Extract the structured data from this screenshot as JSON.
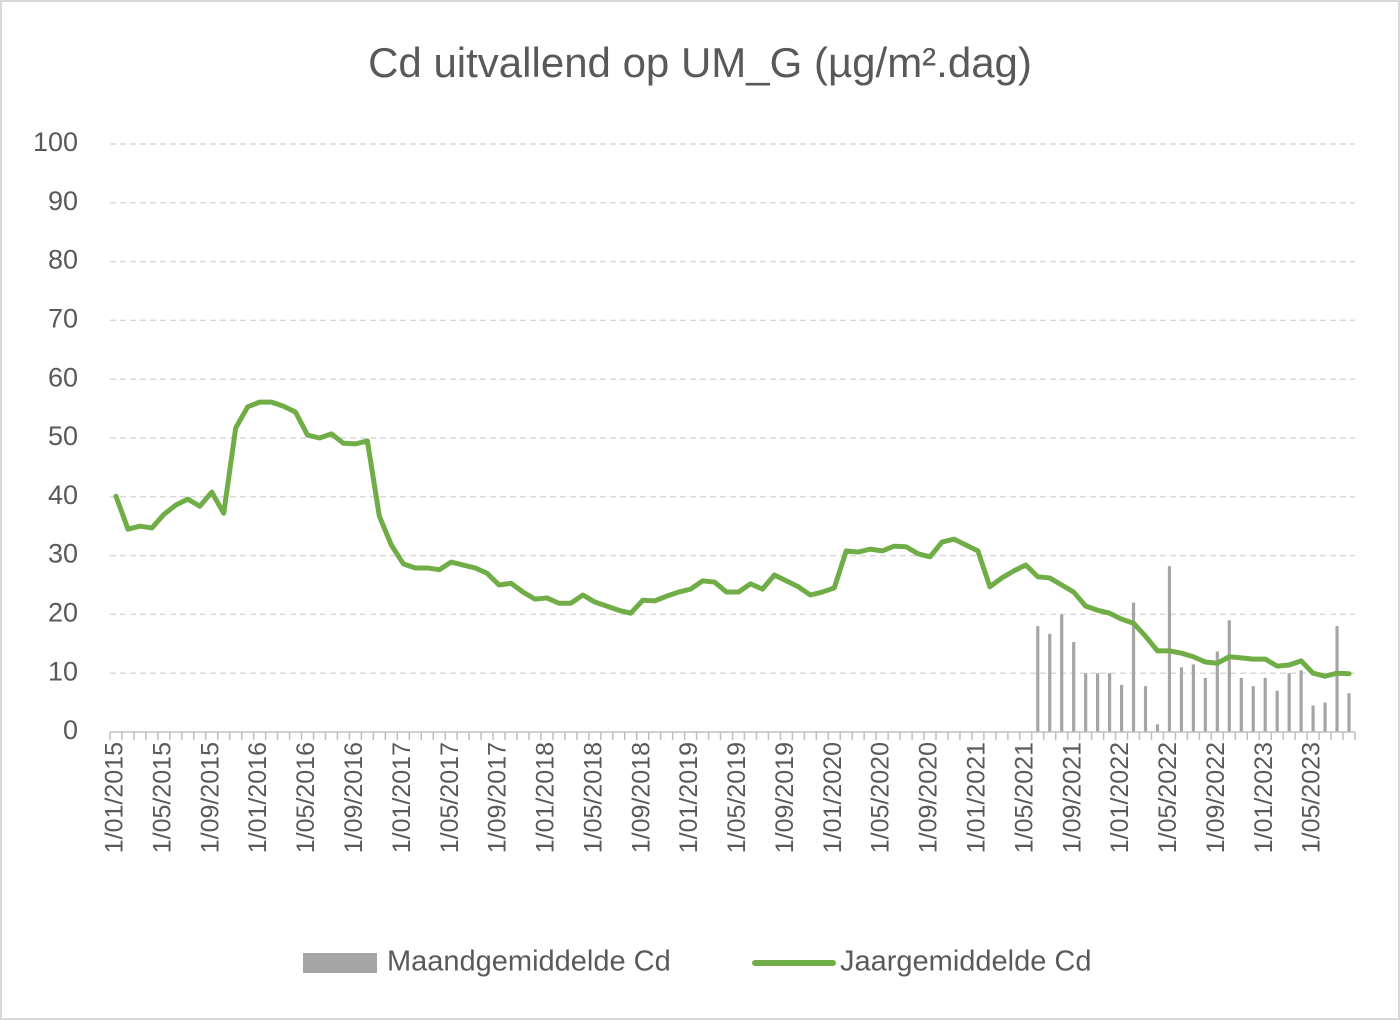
{
  "chart_data": {
    "type": "combo",
    "title": "Cd uitvallend op UM_G (µg/m².dag)",
    "categories": [
      "1/01/2015",
      null,
      null,
      null,
      "1/05/2015",
      null,
      null,
      null,
      "1/09/2015",
      null,
      null,
      null,
      "1/01/2016",
      null,
      null,
      null,
      "1/05/2016",
      null,
      null,
      null,
      "1/09/2016",
      null,
      null,
      null,
      "1/01/2017",
      null,
      null,
      null,
      "1/05/2017",
      null,
      null,
      null,
      "1/09/2017",
      null,
      null,
      null,
      "1/01/2018",
      null,
      null,
      null,
      "1/05/2018",
      null,
      null,
      null,
      "1/09/2018",
      null,
      null,
      null,
      "1/01/2019",
      null,
      null,
      null,
      "1/05/2019",
      null,
      null,
      null,
      "1/09/2019",
      null,
      null,
      null,
      "1/01/2020",
      null,
      null,
      null,
      "1/05/2020",
      null,
      null,
      null,
      "1/09/2020",
      null,
      null,
      null,
      "1/01/2021",
      null,
      null,
      null,
      "1/05/2021",
      null,
      null,
      null,
      "1/09/2021",
      null,
      null,
      null,
      "1/01/2022",
      null,
      null,
      null,
      "1/05/2022",
      null,
      null,
      null,
      "1/09/2022",
      null,
      null,
      null,
      "1/01/2023",
      null,
      null,
      null,
      "1/05/2023",
      null,
      null,
      null
    ],
    "series": [
      {
        "name": "Maandgemiddelde Cd",
        "type": "bar",
        "color": "#a5a5a5",
        "values": [
          null,
          null,
          null,
          null,
          null,
          null,
          null,
          null,
          null,
          null,
          null,
          null,
          null,
          null,
          null,
          null,
          null,
          null,
          null,
          null,
          null,
          null,
          null,
          null,
          null,
          null,
          null,
          null,
          null,
          null,
          null,
          null,
          null,
          null,
          null,
          null,
          null,
          null,
          null,
          null,
          null,
          null,
          null,
          null,
          null,
          null,
          null,
          null,
          null,
          null,
          null,
          null,
          null,
          null,
          null,
          null,
          null,
          null,
          null,
          null,
          null,
          null,
          null,
          null,
          null,
          null,
          null,
          null,
          null,
          null,
          null,
          null,
          null,
          null,
          null,
          null,
          null,
          18,
          16.7,
          20,
          15.3,
          10,
          10,
          10,
          8,
          22,
          7.8,
          1.3,
          28.2,
          11,
          11.5,
          9.2,
          13.7,
          19,
          9.2,
          7.8,
          9.2,
          7,
          10,
          10.5,
          4.5,
          5,
          18,
          6.6
        ]
      },
      {
        "name": "Jaargemiddelde Cd",
        "type": "line",
        "color": "#70ad47",
        "values": [
          40.1,
          34.5,
          35,
          34.7,
          37,
          38.6,
          39.6,
          38.4,
          40.8,
          37.2,
          51.7,
          55.3,
          56.1,
          56.1,
          55.4,
          54.4,
          50.5,
          50,
          50.7,
          49.1,
          49,
          49.5,
          36.7,
          31.8,
          28.6,
          27.9,
          27.9,
          27.6,
          28.9,
          28.4,
          27.9,
          27,
          25,
          25.3,
          23.8,
          22.6,
          22.8,
          21.9,
          21.9,
          23.3,
          22.1,
          21.4,
          20.7,
          20.2,
          22.4,
          22.3,
          23.1,
          23.8,
          24.3,
          25.7,
          25.5,
          23.8,
          23.8,
          25.2,
          24.3,
          26.7,
          25.7,
          24.7,
          23.3,
          23.8,
          24.5,
          30.8,
          30.6,
          31.1,
          30.8,
          31.6,
          31.5,
          30.3,
          29.8,
          32.3,
          32.8,
          31.8,
          30.8,
          24.7,
          26.2,
          27.4,
          28.4,
          26.4,
          26.2,
          25,
          23.8,
          21.4,
          20.7,
          20.2,
          19.2,
          18.5,
          16.3,
          13.8,
          13.8,
          13.4,
          12.8,
          11.9,
          11.7,
          12.8,
          12.6,
          12.4,
          12.4,
          11.2,
          11.4,
          12.1,
          10,
          9.5,
          10,
          9.9
        ]
      }
    ],
    "ylim": [
      0,
      100
    ],
    "yticks": [
      0,
      10,
      20,
      30,
      40,
      50,
      60,
      70,
      80,
      90,
      100
    ],
    "grid": true,
    "legend": "bottom"
  }
}
